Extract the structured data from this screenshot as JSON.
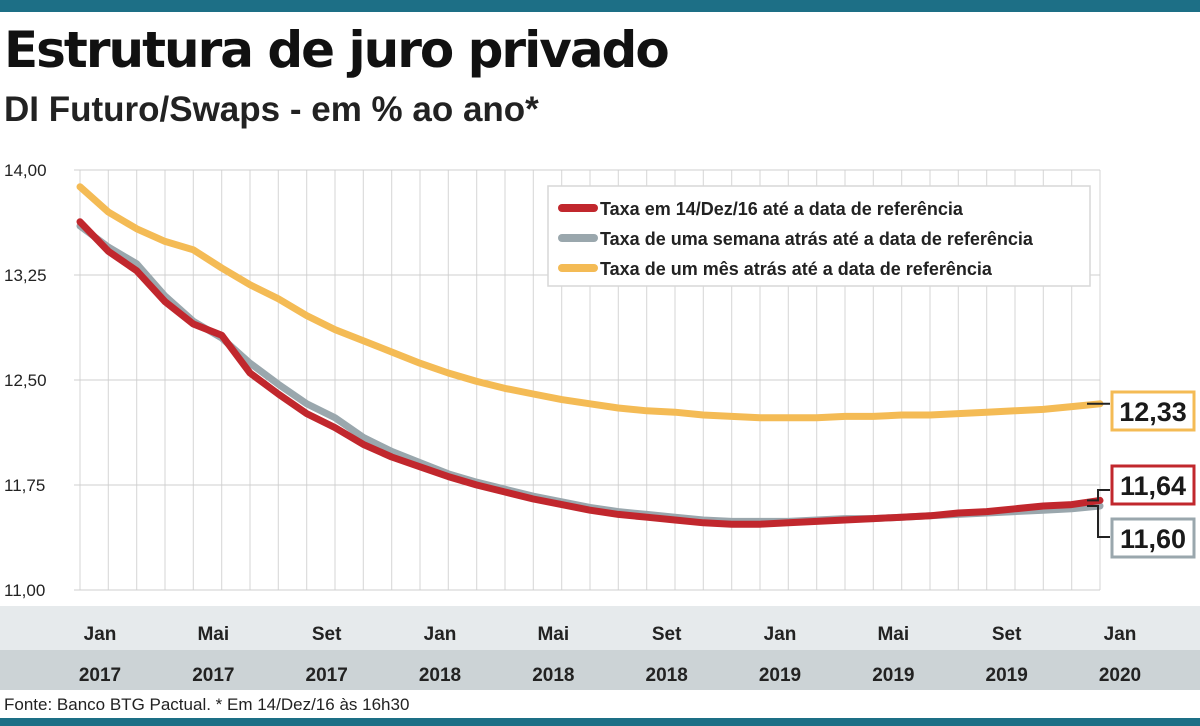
{
  "title": "Estrutura de juro privado",
  "subtitle": "DI Futuro/Swaps - em % ao ano*",
  "source": "Fonte: Banco BTG Pactual. * Em 14/Dez/16 às 16h30",
  "colors": {
    "accent_bar": "#1d6f86",
    "series_today": "#c1272d",
    "series_week": "#9aa7ad",
    "series_month": "#f4bb55",
    "axis_band_light": "#e6eaec",
    "axis_band_dark": "#ccd3d6"
  },
  "chart_data": {
    "type": "line",
    "title": "Estrutura de juro privado",
    "subtitle": "DI Futuro/Swaps - em % ao ano*",
    "xlabel": "",
    "ylabel": "",
    "ylim": [
      11.0,
      14.0
    ],
    "yticks": [
      "14,00",
      "13,25",
      "12,50",
      "11,75",
      "11,00"
    ],
    "ytick_values": [
      14.0,
      13.25,
      12.5,
      11.75,
      11.0
    ],
    "x": [
      0,
      1,
      2,
      3,
      4,
      5,
      6,
      7,
      8,
      9,
      10,
      11,
      12,
      13,
      14,
      15,
      16,
      17,
      18,
      19,
      20,
      21,
      22,
      23,
      24,
      25,
      26,
      27,
      28,
      29,
      30,
      31,
      32,
      33,
      34,
      35,
      36
    ],
    "x_ticks": [
      {
        "month": "Jan",
        "year": "2017"
      },
      {
        "month": "Mai",
        "year": "2017"
      },
      {
        "month": "Set",
        "year": "2017"
      },
      {
        "month": "Jan",
        "year": "2018"
      },
      {
        "month": "Mai",
        "year": "2018"
      },
      {
        "month": "Set",
        "year": "2018"
      },
      {
        "month": "Jan",
        "year": "2019"
      },
      {
        "month": "Mai",
        "year": "2019"
      },
      {
        "month": "Set",
        "year": "2019"
      },
      {
        "month": "Jan",
        "year": "2020"
      }
    ],
    "legend_position": "top-right",
    "grid": true,
    "series": [
      {
        "name": "Taxa em 14/Dez/16 até a data de referência",
        "color": "#c1272d",
        "end_label": "11,64",
        "values": [
          13.63,
          13.42,
          13.28,
          13.06,
          12.9,
          12.82,
          12.55,
          12.4,
          12.26,
          12.16,
          12.04,
          11.95,
          11.88,
          11.81,
          11.75,
          11.7,
          11.65,
          11.61,
          11.57,
          11.54,
          11.52,
          11.5,
          11.48,
          11.47,
          11.47,
          11.48,
          11.49,
          11.5,
          11.51,
          11.52,
          11.53,
          11.55,
          11.56,
          11.58,
          11.6,
          11.61,
          11.64
        ]
      },
      {
        "name": "Taxa de uma semana atrás até a data de referência",
        "color": "#9aa7ad",
        "end_label": "11,60",
        "values": [
          13.6,
          13.45,
          13.33,
          13.1,
          12.92,
          12.8,
          12.62,
          12.47,
          12.33,
          12.23,
          12.09,
          11.99,
          11.91,
          11.83,
          11.77,
          11.72,
          11.67,
          11.63,
          11.59,
          11.56,
          11.54,
          11.52,
          11.5,
          11.49,
          11.49,
          11.49,
          11.5,
          11.51,
          11.51,
          11.52,
          11.53,
          11.54,
          11.55,
          11.56,
          11.57,
          11.58,
          11.6
        ]
      },
      {
        "name": "Taxa de um mês atrás até a data de referência",
        "color": "#f4bb55",
        "end_label": "12,33",
        "values": [
          13.88,
          13.7,
          13.58,
          13.49,
          13.43,
          13.3,
          13.18,
          13.08,
          12.96,
          12.86,
          12.78,
          12.7,
          12.62,
          12.55,
          12.49,
          12.44,
          12.4,
          12.36,
          12.33,
          12.3,
          12.28,
          12.27,
          12.25,
          12.24,
          12.23,
          12.23,
          12.23,
          12.24,
          12.24,
          12.25,
          12.25,
          12.26,
          12.27,
          12.28,
          12.29,
          12.31,
          12.33
        ]
      }
    ]
  }
}
